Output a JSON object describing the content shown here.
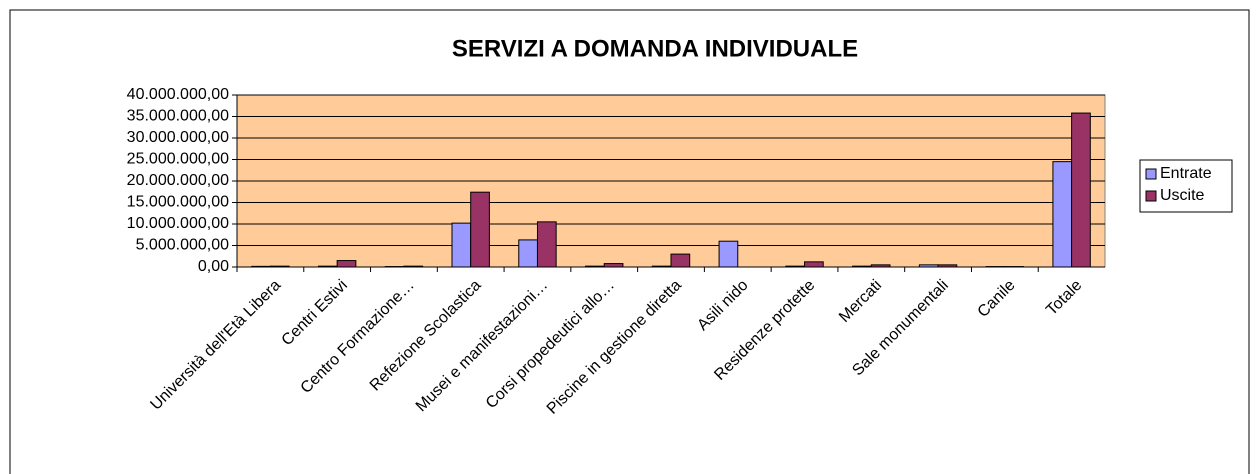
{
  "chart_data": {
    "type": "bar",
    "title": "SERVIZI A DOMANDA INDIVIDUALE",
    "categories": [
      "Università dell'Età Libera",
      "Centri Estivi",
      "Centro Formazione…",
      "Refezione Scolastica",
      "Musei e manifestazioni…",
      "Corsi propedeutici allo…",
      "Piscine in gestione diretta",
      "Asili nido",
      "Residenze protette",
      "Mercati",
      "Sale monumentali",
      "Canile",
      "Totale"
    ],
    "series": [
      {
        "name": "Entrate",
        "color": "#9999ff",
        "values": [
          150000,
          200000,
          100000,
          10200000,
          6300000,
          200000,
          200000,
          6000000,
          200000,
          200000,
          500000,
          100000,
          24500000
        ]
      },
      {
        "name": "Uscite",
        "color": "#993366",
        "values": [
          200000,
          1500000,
          200000,
          17400000,
          10500000,
          800000,
          3000000,
          0,
          1200000,
          500000,
          500000,
          100000,
          35800000
        ]
      }
    ],
    "ylim": [
      0,
      40000000
    ],
    "yticks": [
      {
        "value": 0,
        "label": "0,00"
      },
      {
        "value": 5000000,
        "label": "5.000.000,00"
      },
      {
        "value": 10000000,
        "label": "10.000.000,00"
      },
      {
        "value": 15000000,
        "label": "15.000.000,00"
      },
      {
        "value": 20000000,
        "label": "20.000.000,00"
      },
      {
        "value": 25000000,
        "label": "25.000.000,00"
      },
      {
        "value": 30000000,
        "label": "30.000.000,00"
      },
      {
        "value": 35000000,
        "label": "35.000.000,00"
      },
      {
        "value": 40000000,
        "label": "40.000.000,00"
      }
    ],
    "grid": true,
    "plot_background": "#ffcc99",
    "legend": "right"
  }
}
